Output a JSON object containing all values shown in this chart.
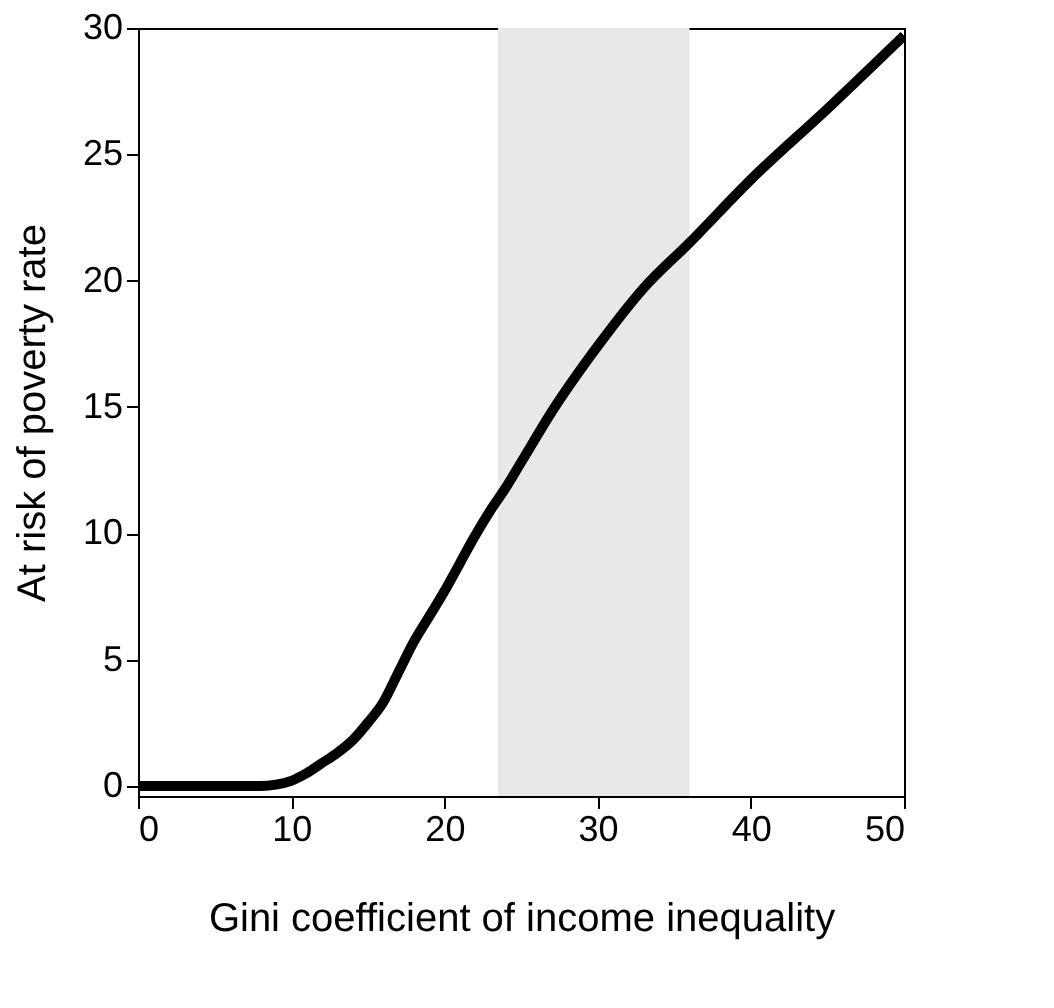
{
  "chart_data": {
    "type": "line",
    "xlabel": "Gini coefficient of income inequality",
    "ylabel": "At risk of poverty rate",
    "x": [
      0,
      4,
      8,
      9,
      10,
      11,
      12,
      13,
      14,
      15,
      16,
      17,
      18,
      19,
      20,
      21,
      22,
      23,
      24,
      25,
      27,
      30,
      33,
      36,
      40,
      45,
      50
    ],
    "series": [
      {
        "color": "#000000",
        "values": [
          0,
          0,
          0,
          0.05,
          0.2,
          0.5,
          0.9,
          1.3,
          1.8,
          2.5,
          3.3,
          4.5,
          5.7,
          6.7,
          7.7,
          8.8,
          9.9,
          10.9,
          11.8,
          12.8,
          14.8,
          17.4,
          19.7,
          21.5,
          24.0,
          26.8,
          29.7
        ]
      }
    ],
    "xlim": [
      0,
      50
    ],
    "ylim": [
      -0.4,
      30
    ],
    "xticks": [
      0,
      10,
      20,
      30,
      40,
      50
    ],
    "yticks": [
      0,
      5,
      10,
      15,
      20,
      25,
      30
    ],
    "bands": [
      {
        "axis": "x",
        "from": 23.5,
        "to": 36,
        "color": "#e8e8e8"
      }
    ],
    "grid": false,
    "marker": "none",
    "line_style": "solid"
  }
}
